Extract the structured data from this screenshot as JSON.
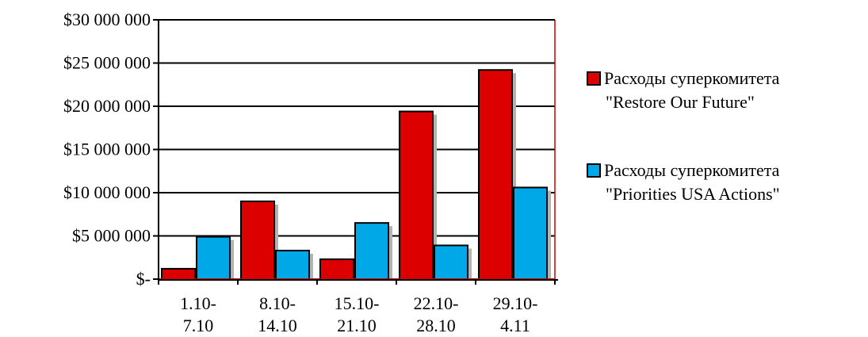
{
  "chart_data": {
    "type": "bar",
    "title": "",
    "xlabel": "",
    "ylabel": "",
    "categories": [
      [
        "1.10-",
        "7.10"
      ],
      [
        "8.10-",
        "14.10"
      ],
      [
        "15.10-",
        "21.10"
      ],
      [
        "22.10-",
        "28.10"
      ],
      [
        "29.10-",
        "4.11"
      ]
    ],
    "ylim": [
      0,
      30000000
    ],
    "yticks": [
      0,
      5000000,
      10000000,
      15000000,
      20000000,
      25000000,
      30000000
    ],
    "ytick_labels": [
      "$-",
      "$5 000 000",
      "$10 000 000",
      "$15 000 000",
      "$20 000 000",
      "$25 000 000",
      "$30 000 000"
    ],
    "grid": true,
    "legend_position": "right",
    "series": [
      {
        "name": [
          "Расходы суперкомитета",
          "\"Restore Our Future\""
        ],
        "color": "#dd0000",
        "values": [
          1200000,
          9000000,
          2300000,
          19400000,
          24200000
        ]
      },
      {
        "name": [
          "Расходы суперкомитета",
          "\"Priorities USA Actions\""
        ],
        "color": "#00a8e8",
        "values": [
          4900000,
          3300000,
          6500000,
          3900000,
          10600000
        ]
      }
    ]
  }
}
